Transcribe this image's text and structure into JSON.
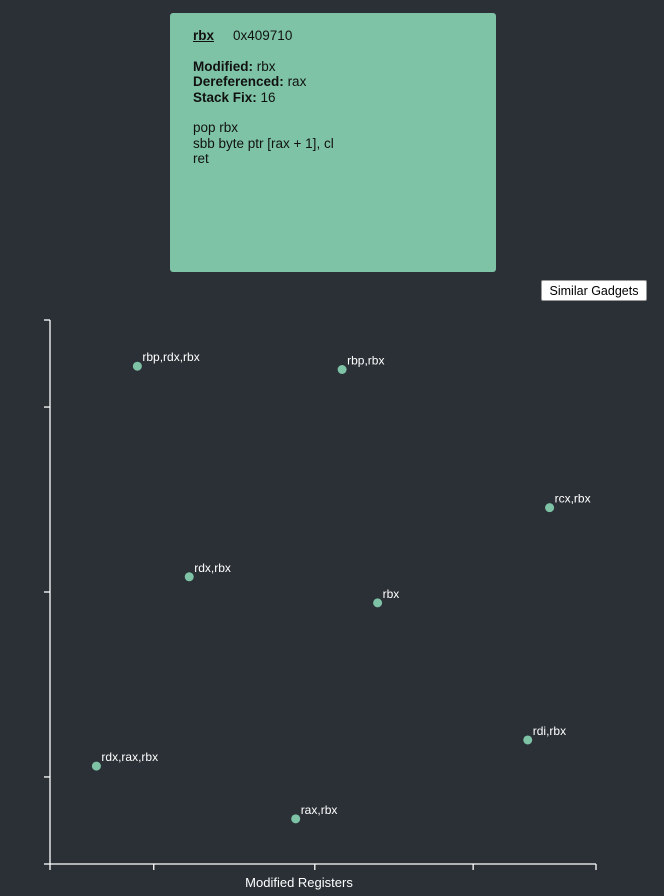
{
  "gadget": {
    "register": "rbx",
    "address": "0x409710",
    "modified_key": "Modified:",
    "modified_value": "rbx",
    "dereferenced_key": "Dereferenced:",
    "dereferenced_value": "rax",
    "stack_fix_key": "Stack Fix:",
    "stack_fix_value": "16",
    "instructions": [
      "pop rbx",
      "sbb byte ptr [rax + 1], cl",
      "ret"
    ]
  },
  "similar_button_label": "Similar Gadgets",
  "colors": {
    "background": "#2b3036",
    "card": "#7ec3a6",
    "point": "#7ec3a6",
    "axis": "#ffffff"
  },
  "chart_data": {
    "type": "scatter",
    "xlabel": "Modified Registers",
    "ylabel": "",
    "points": [
      {
        "label": "rbp,rdx,rbx",
        "x": 0.16,
        "y": 0.915
      },
      {
        "label": "rbp,rbx",
        "x": 0.535,
        "y": 0.909
      },
      {
        "label": "rcx,rbx",
        "x": 0.915,
        "y": 0.655
      },
      {
        "label": "rdx,rbx",
        "x": 0.255,
        "y": 0.528
      },
      {
        "label": "rbx",
        "x": 0.6,
        "y": 0.48
      },
      {
        "label": "rdi,rbx",
        "x": 0.875,
        "y": 0.228
      },
      {
        "label": "rdx,rax,rbx",
        "x": 0.085,
        "y": 0.18
      },
      {
        "label": "rax,rbx",
        "x": 0.45,
        "y": 0.083
      }
    ]
  }
}
